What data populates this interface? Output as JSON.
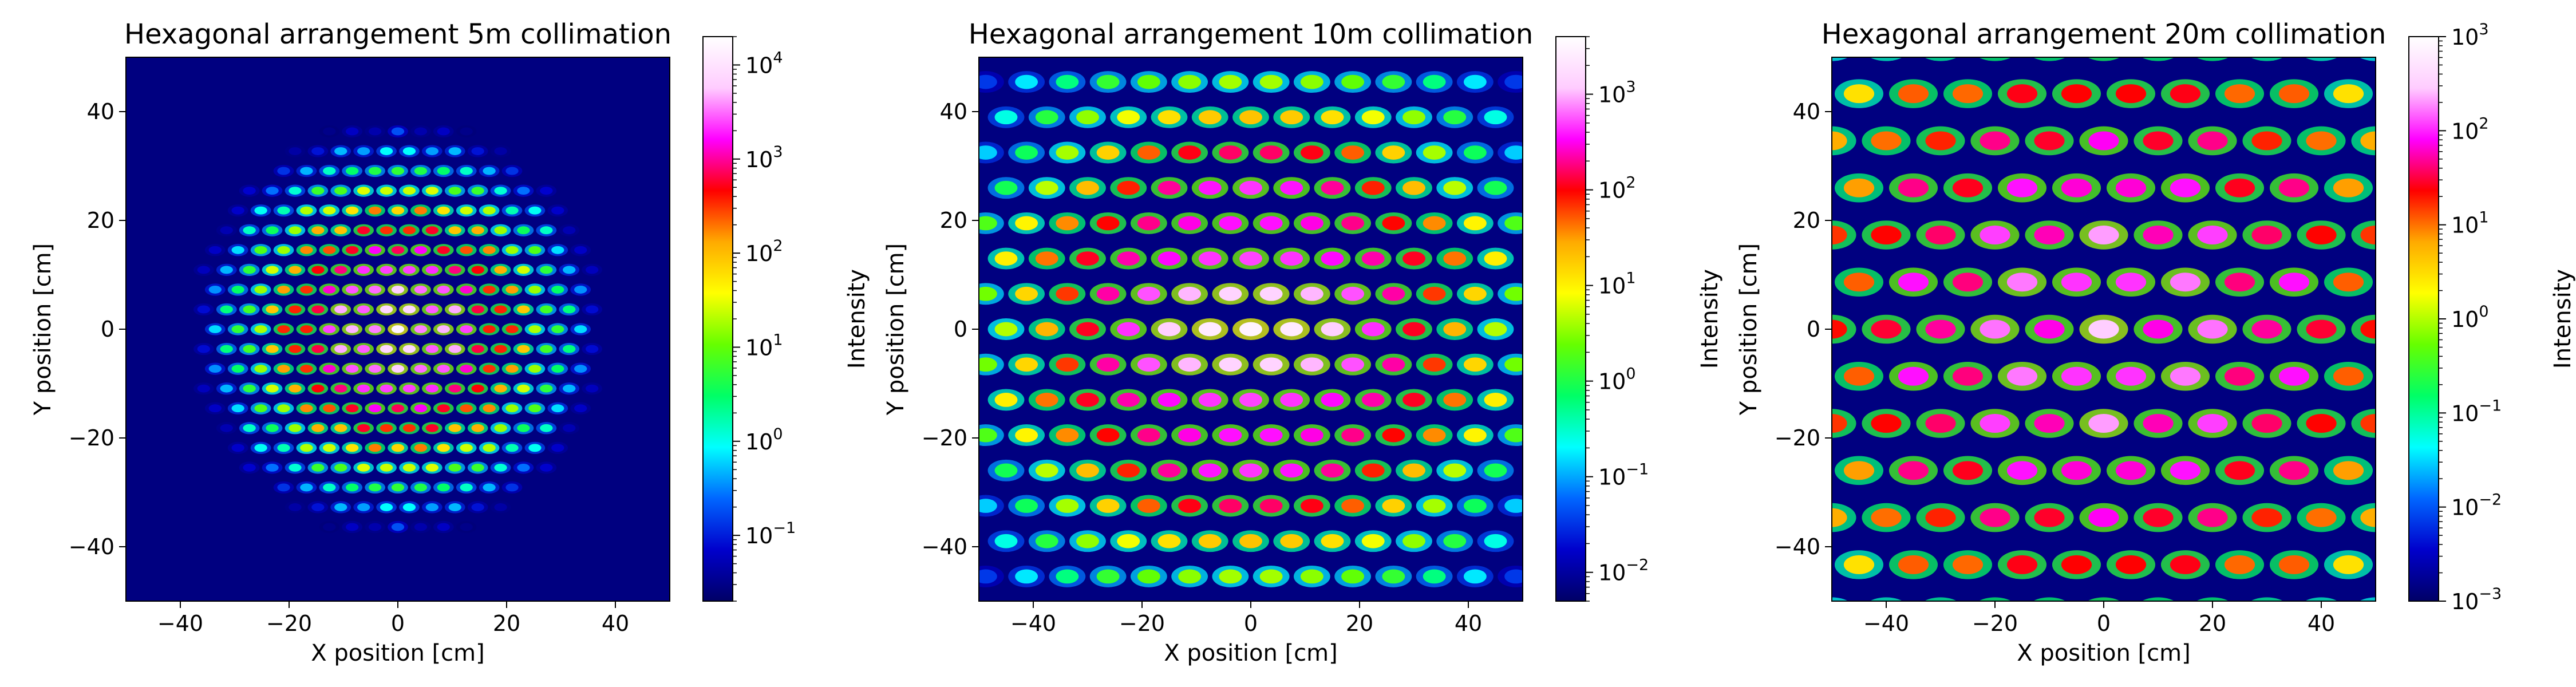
{
  "chart_data": [
    {
      "type": "heatmap",
      "title": "Hexagonal arrangement 5m collimation",
      "xlabel": "X position [cm]",
      "ylabel": "Y position [cm]",
      "colorbar_label": "Intensity",
      "xlim": [
        -50,
        50
      ],
      "ylim": [
        -50,
        50
      ],
      "x_ticks": [
        -40,
        -20,
        0,
        20,
        40
      ],
      "y_ticks": [
        -40,
        -20,
        0,
        20,
        40
      ],
      "x_tick_labels": [
        "−40",
        "−20",
        "0",
        "20",
        "40"
      ],
      "y_tick_labels": [
        "−40",
        "−20",
        "0",
        "20",
        "40"
      ],
      "colorbar_scale": "log",
      "colorbar_range": [
        0.02,
        20000
      ],
      "colorbar_ticks": [
        {
          "base": "10",
          "exp": "−1"
        },
        {
          "base": "10",
          "exp": "0"
        },
        {
          "base": "10",
          "exp": "1"
        },
        {
          "base": "10",
          "exp": "2"
        },
        {
          "base": "10",
          "exp": "3"
        },
        {
          "base": "10",
          "exp": "4"
        }
      ],
      "colorbar_tick_values": [
        0.1,
        1,
        10,
        100,
        1000,
        10000
      ],
      "background_intensity": 0.02,
      "pattern": {
        "lattice_spacing_cm": 4.2,
        "envelope_radius_cm": 23,
        "peak_intensity": 15000,
        "center_x_cm": 0,
        "center_y_cm": 0
      }
    },
    {
      "type": "heatmap",
      "title": "Hexagonal arrangement 10m collimation",
      "xlabel": "X position [cm]",
      "ylabel": "Y position [cm]",
      "colorbar_label": "Intensity",
      "xlim": [
        -50,
        50
      ],
      "ylim": [
        -50,
        50
      ],
      "x_ticks": [
        -40,
        -20,
        0,
        20,
        40
      ],
      "y_ticks": [
        -40,
        -20,
        0,
        20,
        40
      ],
      "x_tick_labels": [
        "−40",
        "−20",
        "0",
        "20",
        "40"
      ],
      "y_tick_labels": [
        "−40",
        "−20",
        "0",
        "20",
        "40"
      ],
      "colorbar_scale": "log",
      "colorbar_range": [
        0.005,
        4000
      ],
      "colorbar_ticks": [
        {
          "base": "10",
          "exp": "−2"
        },
        {
          "base": "10",
          "exp": "−1"
        },
        {
          "base": "10",
          "exp": "0"
        },
        {
          "base": "10",
          "exp": "1"
        },
        {
          "base": "10",
          "exp": "2"
        },
        {
          "base": "10",
          "exp": "3"
        }
      ],
      "colorbar_tick_values": [
        0.01,
        0.1,
        1,
        10,
        100,
        1000
      ],
      "background_intensity": 0.005,
      "pattern": {
        "lattice_spacing_cm": 7.5,
        "envelope_radius_cm": 42,
        "peak_intensity": 3000,
        "center_x_cm": 0,
        "center_y_cm": 0
      }
    },
    {
      "type": "heatmap",
      "title": "Hexagonal arrangement 20m collimation",
      "xlabel": "X position [cm]",
      "ylabel": "Y position [cm]",
      "colorbar_label": "Intensity",
      "xlim": [
        -50,
        50
      ],
      "ylim": [
        -50,
        50
      ],
      "x_ticks": [
        -40,
        -20,
        0,
        20,
        40
      ],
      "y_ticks": [
        -40,
        -20,
        0,
        20,
        40
      ],
      "x_tick_labels": [
        "−40",
        "−20",
        "0",
        "20",
        "40"
      ],
      "y_tick_labels": [
        "−40",
        "−20",
        "0",
        "20",
        "40"
      ],
      "colorbar_scale": "log",
      "colorbar_range": [
        0.001,
        1000
      ],
      "colorbar_ticks": [
        {
          "base": "10",
          "exp": "−3"
        },
        {
          "base": "10",
          "exp": "−2"
        },
        {
          "base": "10",
          "exp": "−1"
        },
        {
          "base": "10",
          "exp": "0"
        },
        {
          "base": "10",
          "exp": "1"
        },
        {
          "base": "10",
          "exp": "2"
        },
        {
          "base": "10",
          "exp": "3"
        }
      ],
      "colorbar_tick_values": [
        0.001,
        0.01,
        0.1,
        1,
        10,
        100,
        1000
      ],
      "background_intensity": 0.001,
      "pattern": {
        "lattice_spacing_cm": 10,
        "envelope_radius_cm": 70,
        "peak_intensity": 300,
        "center_x_cm": 0,
        "center_y_cm": 0
      }
    }
  ],
  "colormap": [
    "#000066",
    "#0000cc",
    "#0066ff",
    "#00ffff",
    "#00ff66",
    "#66ff00",
    "#ffff00",
    "#ffaa00",
    "#ff0000",
    "#ff00ff",
    "#ffccff",
    "#ffffff"
  ],
  "background_color": "#000080"
}
